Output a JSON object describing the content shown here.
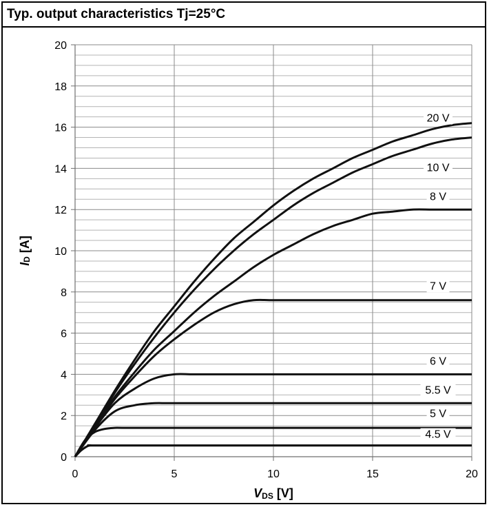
{
  "title": "Typ. output characteristics Tj=25°C",
  "chart_data": {
    "type": "line",
    "title": "Typ. output characteristics Tj=25°C",
    "xlabel": {
      "main": "V",
      "sub": "DS",
      "unit": " [V]"
    },
    "ylabel": {
      "main": "I",
      "sub": "D",
      "unit": " [A]"
    },
    "xlim": [
      0,
      20
    ],
    "ylim": [
      0,
      20
    ],
    "xticks": [
      0,
      5,
      10,
      15,
      20
    ],
    "yticks": [
      0,
      2,
      4,
      6,
      8,
      10,
      12,
      14,
      16,
      18,
      20
    ],
    "grid": true,
    "series": [
      {
        "name": "20 V",
        "x": [
          0,
          1,
          2,
          3,
          4,
          5,
          6,
          7,
          8,
          9,
          10,
          11,
          12,
          13,
          14,
          15,
          16,
          17,
          18,
          19,
          20
        ],
        "y": [
          0,
          1.6,
          3.2,
          4.7,
          6.1,
          7.3,
          8.5,
          9.6,
          10.6,
          11.4,
          12.2,
          12.9,
          13.5,
          14.0,
          14.5,
          14.9,
          15.3,
          15.6,
          15.9,
          16.1,
          16.2
        ]
      },
      {
        "name": "10 V",
        "x": [
          0,
          1,
          2,
          3,
          4,
          5,
          6,
          7,
          8,
          9,
          10,
          11,
          12,
          13,
          14,
          15,
          16,
          17,
          18,
          19,
          20
        ],
        "y": [
          0,
          1.55,
          3.1,
          4.5,
          5.8,
          7.0,
          8.1,
          9.1,
          10.0,
          10.8,
          11.5,
          12.2,
          12.8,
          13.3,
          13.8,
          14.2,
          14.6,
          14.9,
          15.2,
          15.4,
          15.5
        ]
      },
      {
        "name": "8 V",
        "x": [
          0,
          1,
          2,
          3,
          4,
          5,
          6,
          7,
          8,
          9,
          10,
          11,
          12,
          13,
          14,
          15,
          16,
          17,
          18,
          19,
          20
        ],
        "y": [
          0,
          1.5,
          2.9,
          4.1,
          5.2,
          6.1,
          7.0,
          7.8,
          8.5,
          9.2,
          9.8,
          10.3,
          10.8,
          11.2,
          11.5,
          11.8,
          11.9,
          12.0,
          12.0,
          12.0,
          12.0
        ]
      },
      {
        "name": "7 V",
        "x": [
          0,
          1,
          2,
          3,
          4,
          5,
          6,
          7,
          8,
          9,
          10,
          12,
          14,
          16,
          18,
          20
        ],
        "y": [
          0,
          1.45,
          2.8,
          3.9,
          4.9,
          5.7,
          6.4,
          7.0,
          7.4,
          7.6,
          7.6,
          7.6,
          7.6,
          7.6,
          7.6,
          7.6
        ]
      },
      {
        "name": "6 V",
        "x": [
          0,
          1,
          2,
          3,
          4,
          5,
          6,
          8,
          10,
          15,
          20
        ],
        "y": [
          0,
          1.4,
          2.6,
          3.3,
          3.8,
          4.0,
          4.0,
          4.0,
          4.0,
          4.0,
          4.0
        ]
      },
      {
        "name": "5.5 V",
        "x": [
          0,
          1,
          2,
          3,
          4,
          5,
          10,
          15,
          20
        ],
        "y": [
          0,
          1.3,
          2.2,
          2.5,
          2.6,
          2.6,
          2.6,
          2.6,
          2.6
        ]
      },
      {
        "name": "5 V",
        "x": [
          0,
          0.5,
          1,
          1.5,
          2,
          2.5,
          5,
          10,
          15,
          20
        ],
        "y": [
          0,
          0.8,
          1.2,
          1.35,
          1.4,
          1.4,
          1.4,
          1.4,
          1.4,
          1.4
        ]
      },
      {
        "name": "4.5 V",
        "x": [
          0,
          0.3,
          0.6,
          0.8,
          1,
          5,
          10,
          15,
          20
        ],
        "y": [
          0,
          0.3,
          0.5,
          0.55,
          0.55,
          0.55,
          0.55,
          0.55,
          0.55
        ]
      }
    ],
    "curve_labels": [
      {
        "text": "20 V",
        "x": 18.3,
        "y": 16.3
      },
      {
        "text": "10 V",
        "x": 18.3,
        "y": 13.9
      },
      {
        "text": "8 V",
        "x": 18.3,
        "y": 12.5
      },
      {
        "text": "7 V",
        "x": 18.3,
        "y": 8.15
      },
      {
        "text": "6 V",
        "x": 18.3,
        "y": 4.5
      },
      {
        "text": "5.5 V",
        "x": 18.3,
        "y": 3.1
      },
      {
        "text": "5 V",
        "x": 18.3,
        "y": 1.95
      },
      {
        "text": "4.5 V",
        "x": 18.3,
        "y": 0.95
      }
    ]
  }
}
